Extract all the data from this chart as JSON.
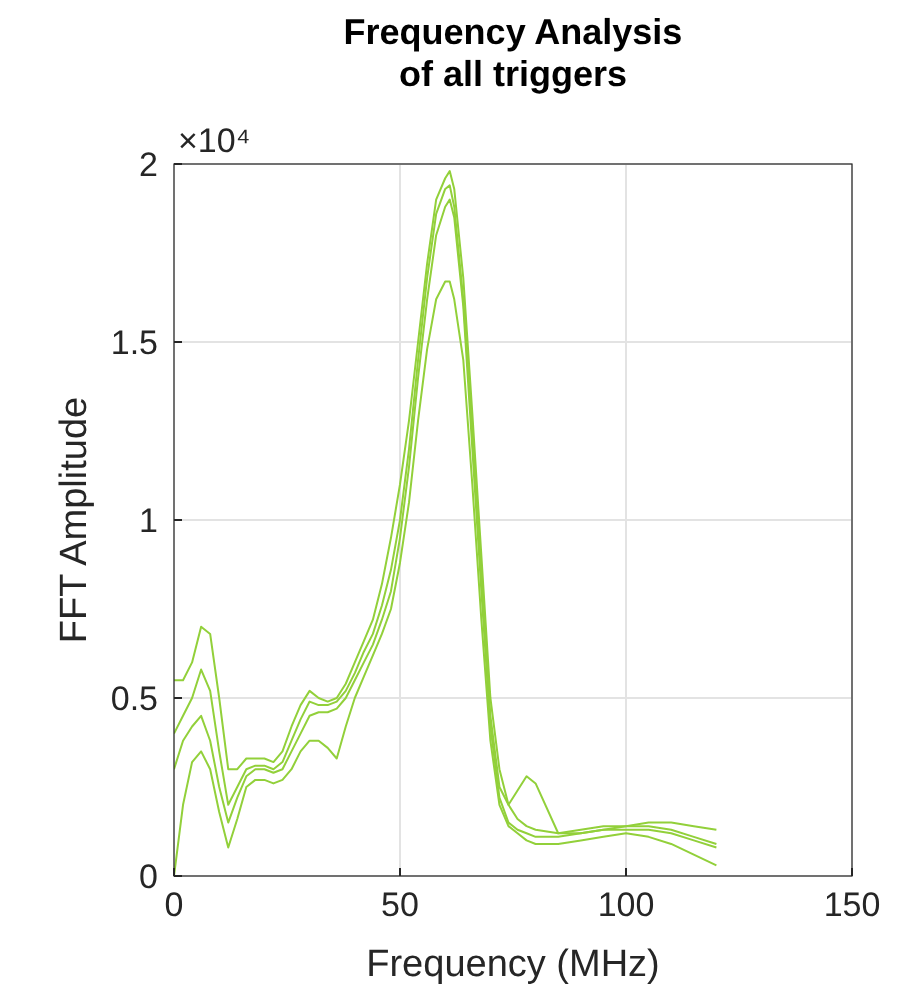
{
  "chart_data": {
    "type": "line",
    "title": "Frequency Analysis\nof all triggers",
    "xlabel": "Frequency (MHz)",
    "ylabel": "FFT Amplitude",
    "annotations": [
      "×10⁴"
    ],
    "x": [
      0,
      2,
      4,
      6,
      8,
      10,
      12,
      14,
      16,
      18,
      20,
      22,
      24,
      26,
      28,
      30,
      32,
      34,
      36,
      38,
      40,
      42,
      44,
      46,
      48,
      50,
      52,
      54,
      56,
      58,
      60,
      61,
      62,
      64,
      66,
      68,
      70,
      72,
      74,
      76,
      78,
      80,
      85,
      90,
      95,
      100,
      105,
      110,
      115,
      120
    ],
    "series": [
      {
        "color": "#92d03a",
        "values": [
          0.3,
          0.38,
          0.42,
          0.45,
          0.38,
          0.25,
          0.15,
          0.22,
          0.28,
          0.3,
          0.3,
          0.29,
          0.3,
          0.35,
          0.4,
          0.45,
          0.46,
          0.46,
          0.47,
          0.5,
          0.55,
          0.6,
          0.65,
          0.72,
          0.8,
          0.95,
          1.15,
          1.4,
          1.62,
          1.8,
          1.88,
          1.9,
          1.85,
          1.6,
          1.2,
          0.8,
          0.42,
          0.22,
          0.15,
          0.13,
          0.12,
          0.11,
          0.11,
          0.12,
          0.13,
          0.13,
          0.13,
          0.12,
          0.1,
          0.08
        ]
      },
      {
        "color": "#92d03a",
        "values": [
          0.55,
          0.55,
          0.6,
          0.7,
          0.68,
          0.5,
          0.3,
          0.3,
          0.33,
          0.33,
          0.33,
          0.32,
          0.35,
          0.42,
          0.48,
          0.52,
          0.5,
          0.49,
          0.5,
          0.54,
          0.6,
          0.66,
          0.72,
          0.82,
          0.95,
          1.1,
          1.28,
          1.5,
          1.72,
          1.9,
          1.96,
          1.98,
          1.93,
          1.68,
          1.3,
          0.9,
          0.5,
          0.3,
          0.2,
          0.16,
          0.14,
          0.13,
          0.12,
          0.13,
          0.14,
          0.14,
          0.15,
          0.15,
          0.14,
          0.13
        ]
      },
      {
        "color": "#92d03a",
        "values": [
          0,
          0.2,
          0.32,
          0.35,
          0.3,
          0.18,
          0.08,
          0.16,
          0.25,
          0.27,
          0.27,
          0.26,
          0.27,
          0.3,
          0.35,
          0.38,
          0.38,
          0.36,
          0.33,
          0.42,
          0.5,
          0.56,
          0.62,
          0.68,
          0.75,
          0.88,
          1.05,
          1.28,
          1.48,
          1.62,
          1.67,
          1.67,
          1.62,
          1.45,
          1.1,
          0.72,
          0.38,
          0.2,
          0.14,
          0.12,
          0.1,
          0.09,
          0.09,
          0.1,
          0.11,
          0.12,
          0.11,
          0.09,
          0.06,
          0.03
        ]
      },
      {
        "color": "#92d03a",
        "values": [
          0.4,
          0.45,
          0.5,
          0.58,
          0.52,
          0.35,
          0.2,
          0.25,
          0.3,
          0.31,
          0.31,
          0.3,
          0.32,
          0.38,
          0.44,
          0.49,
          0.48,
          0.48,
          0.49,
          0.52,
          0.57,
          0.63,
          0.68,
          0.76,
          0.86,
          1.0,
          1.2,
          1.45,
          1.68,
          1.86,
          1.93,
          1.94,
          1.88,
          1.62,
          1.25,
          0.85,
          0.45,
          0.25,
          0.2,
          0.24,
          0.28,
          0.26,
          0.12,
          0.12,
          0.13,
          0.14,
          0.14,
          0.13,
          0.11,
          0.09
        ]
      }
    ],
    "xlim": [
      0,
      150
    ],
    "xticks": [
      0,
      50,
      100,
      150
    ],
    "ylim": [
      0,
      2
    ],
    "yticks": [
      0,
      0.5,
      1,
      1.5,
      2
    ],
    "grid": true,
    "line_style": "solid",
    "marker": "none"
  }
}
